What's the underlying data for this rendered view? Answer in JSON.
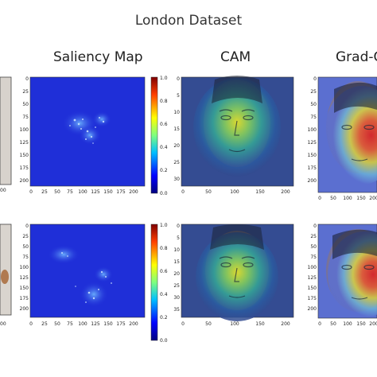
{
  "title": "London Dataset",
  "columns": [
    {
      "label": "Saliency Map"
    },
    {
      "label": "CAM"
    },
    {
      "label": "Grad-C"
    }
  ],
  "saliency": {
    "yticks": [
      "0",
      "25",
      "50",
      "75",
      "100",
      "125",
      "150",
      "175",
      "200"
    ],
    "xticks": [
      "0",
      "25",
      "50",
      "75",
      "100",
      "125",
      "150",
      "175",
      "200"
    ],
    "colorbar": [
      "1.0",
      "0.8",
      "0.6",
      "0.4",
      "0.2",
      "0.0"
    ]
  },
  "cam": {
    "yticks_top": [
      "0",
      "5",
      "10",
      "15",
      "20",
      "25",
      "30"
    ],
    "yticks_bottom": [
      "0",
      "5",
      "10",
      "15",
      "20",
      "25",
      "30",
      "35"
    ],
    "xticks": [
      "0",
      "50",
      "100",
      "150",
      "200"
    ]
  },
  "gradcam": {
    "yticks": [
      "0",
      "25",
      "50",
      "75",
      "100",
      "125",
      "150",
      "175",
      "200"
    ],
    "xticks": [
      "0",
      "50",
      "100",
      "150",
      "200"
    ]
  },
  "left_partial": {
    "tick_top": "00",
    "tick_bottom": "00"
  },
  "colors": {
    "panel_blue": "#1f2fd8",
    "cam_base": "#3b4f9a"
  }
}
